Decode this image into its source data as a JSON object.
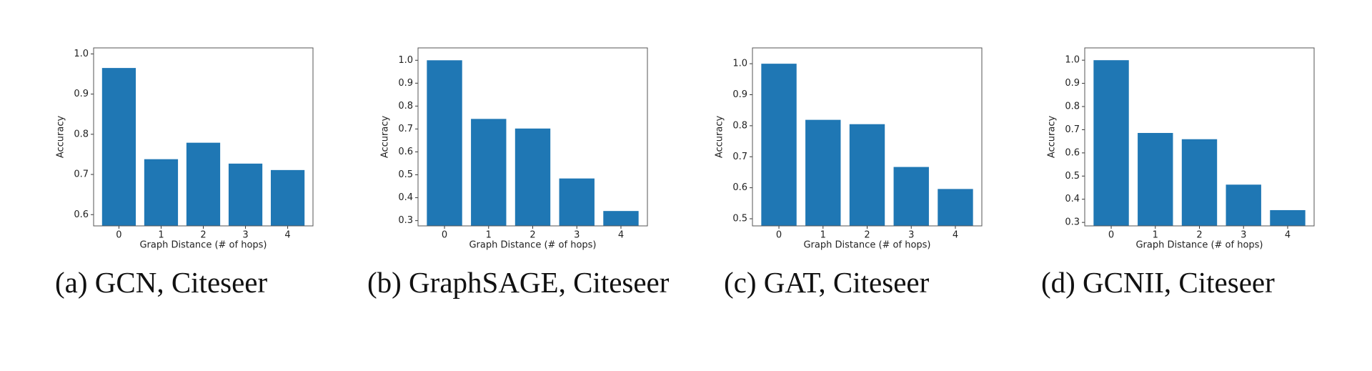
{
  "chart_data": [
    {
      "type": "bar",
      "caption": "(a) GCN, Citeseer",
      "xlabel": "Graph Distance (# of hops)",
      "ylabel": "Accuracy",
      "categories": [
        "0",
        "1",
        "2",
        "3",
        "4"
      ],
      "values": [
        0.965,
        0.738,
        0.779,
        0.727,
        0.711
      ],
      "color": "#1f77b4",
      "ylim": [
        0.572,
        1.015
      ],
      "yticks": [
        0.6,
        0.7,
        0.8,
        0.9,
        {
          "value": 1,
          "label": "1.0"
        }
      ]
    },
    {
      "type": "bar",
      "caption": "(b) GraphSAGE, Citeseer",
      "xlabel": "Graph Distance (# of hops)",
      "ylabel": "Accuracy",
      "categories": [
        "0",
        "1",
        "2",
        "3",
        "4"
      ],
      "values": [
        1.0,
        0.744,
        0.702,
        0.484,
        0.342
      ],
      "color": "#1f77b4",
      "ylim": [
        0.277,
        1.054
      ],
      "yticks": [
        0.3,
        0.4,
        0.5,
        0.6,
        0.7,
        0.8,
        0.9,
        {
          "value": 1,
          "label": "1.0"
        }
      ]
    },
    {
      "type": "bar",
      "caption": "(c) GAT, Citeseer",
      "xlabel": "Graph Distance (# of hops)",
      "ylabel": "Accuracy",
      "categories": [
        "0",
        "1",
        "2",
        "3",
        "4"
      ],
      "values": [
        1.0,
        0.819,
        0.805,
        0.667,
        0.596
      ],
      "color": "#1f77b4",
      "ylim": [
        0.477,
        1.051
      ],
      "yticks": [
        0.5,
        0.6,
        0.7,
        0.8,
        0.9,
        {
          "value": 1,
          "label": "1.0"
        }
      ]
    },
    {
      "type": "bar",
      "caption": "(d) GCNII, Citeseer",
      "xlabel": "Graph Distance (# of hops)",
      "ylabel": "Accuracy",
      "categories": [
        "0",
        "1",
        "2",
        "3",
        "4"
      ],
      "values": [
        1.0,
        0.686,
        0.659,
        0.463,
        0.353
      ],
      "color": "#1f77b4",
      "ylim": [
        0.285,
        1.053
      ],
      "yticks": [
        0.3,
        0.4,
        0.5,
        0.6,
        0.7,
        0.8,
        0.9,
        {
          "value": 1,
          "label": "1.0"
        }
      ]
    }
  ]
}
